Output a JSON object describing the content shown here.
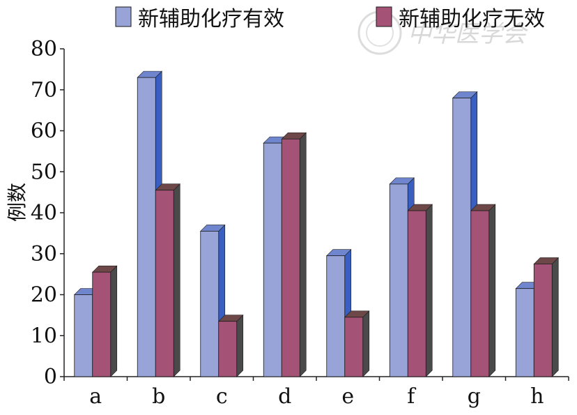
{
  "chart_data": {
    "type": "bar",
    "categories": [
      "a",
      "b",
      "c",
      "d",
      "e",
      "f",
      "g",
      "h"
    ],
    "series": [
      {
        "name": "新辅助化疗有效",
        "color": "#98a4d8",
        "side_color": "#3a5fc2",
        "top_color": "#6f86cf",
        "values": [
          20,
          73,
          35.5,
          57,
          29.5,
          47,
          68,
          21.5
        ]
      },
      {
        "name": "新辅助化疗无效",
        "color": "#a45276",
        "side_color": "#4a4a4a",
        "top_color": "#6e4848",
        "values": [
          25.5,
          45.5,
          13.5,
          58,
          14.5,
          40.5,
          40.5,
          27.5
        ]
      }
    ],
    "ylabel": "例数",
    "xlabel": "",
    "ylim": [
      0,
      80
    ],
    "yticks": [
      0,
      10,
      20,
      30,
      40,
      50,
      60,
      70,
      80
    ],
    "grid": false,
    "legend_position": "top",
    "style": "3d-clustered-bar"
  },
  "watermark": {
    "text": "中华医学会"
  }
}
